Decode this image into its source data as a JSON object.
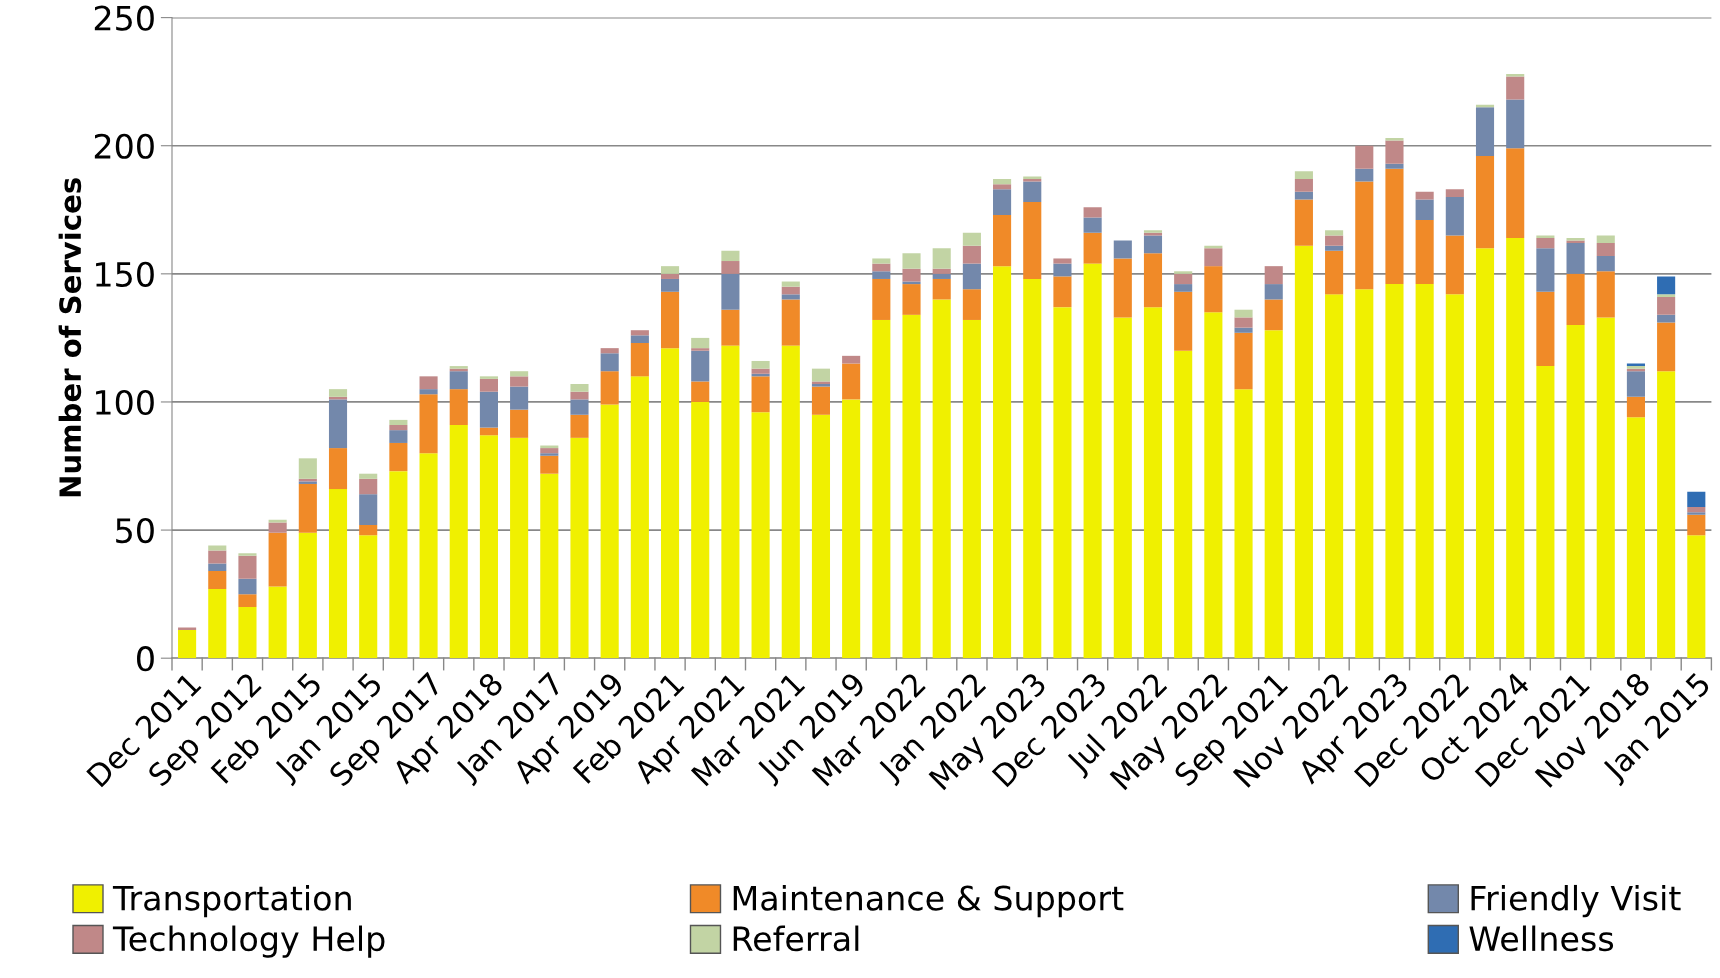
{
  "chart_data": {
    "type": "bar",
    "stacked": true,
    "ylabel": "Number of Services",
    "categories": [
      "Dec 2011",
      null,
      "Sep 2012",
      null,
      "Feb 2015",
      null,
      "Jan 2015",
      null,
      "Sep 2017",
      null,
      "Apr 2018",
      null,
      "Jan 2017",
      null,
      "Apr 2019",
      null,
      "Feb 2021",
      null,
      "Apr 2021",
      null,
      "Mar 2021",
      null,
      "Jun 2019",
      null,
      "Mar 2022",
      null,
      "Jan 2022",
      null,
      "May 2023",
      null,
      "Dec 2023",
      null,
      "Jul 2022",
      null,
      "May 2022",
      null,
      "Sep 2021",
      null,
      "Nov 2022",
      null,
      "Apr 2023",
      null,
      "Dec 2022",
      null,
      "Oct 2024",
      null,
      "Dec 2021",
      null,
      "Nov 2018",
      null,
      "Jan 2015"
    ],
    "series": [
      {
        "name": "Transportation",
        "color": "#f0f000",
        "values": [
          11,
          27,
          20,
          28,
          49,
          66,
          48,
          73,
          80,
          91,
          87,
          86,
          72,
          86,
          99,
          110,
          121,
          100,
          122,
          96,
          122,
          95,
          101,
          132,
          134,
          140,
          132,
          153,
          148,
          137,
          154,
          133,
          137,
          120,
          135,
          105,
          128,
          161,
          142,
          144,
          146,
          146,
          142,
          160,
          164,
          114,
          130,
          133,
          94,
          112,
          48
        ]
      },
      {
        "name": "Maintenance & Support",
        "color": "#f08a28",
        "values": [
          0,
          7,
          5,
          21,
          19,
          16,
          4,
          11,
          23,
          14,
          3,
          11,
          7,
          9,
          13,
          13,
          22,
          8,
          14,
          14,
          18,
          11,
          14,
          16,
          12,
          8,
          12,
          20,
          30,
          12,
          12,
          23,
          21,
          23,
          18,
          22,
          12,
          18,
          17,
          42,
          45,
          25,
          23,
          36,
          35,
          29,
          20,
          18,
          8,
          19,
          8
        ]
      },
      {
        "name": "Friendly Visit",
        "color": "#7388ab",
        "values": [
          0,
          3,
          6,
          0,
          1,
          19,
          12,
          5,
          2,
          7,
          14,
          9,
          1,
          6,
          7,
          3,
          5,
          12,
          14,
          1,
          2,
          1,
          0,
          3,
          1,
          2,
          10,
          10,
          8,
          5,
          6,
          7,
          7,
          3,
          0,
          2,
          6,
          3,
          2,
          5,
          2,
          8,
          15,
          19,
          19,
          17,
          12,
          6,
          10,
          3,
          1
        ]
      },
      {
        "name": "Technology Help",
        "color": "#c08888",
        "values": [
          1,
          5,
          9,
          4,
          1,
          1,
          6,
          2,
          5,
          1,
          5,
          4,
          2,
          3,
          2,
          2,
          2,
          1,
          5,
          2,
          3,
          1,
          3,
          3,
          5,
          2,
          7,
          2,
          1,
          2,
          4,
          0,
          1,
          4,
          7,
          4,
          7,
          5,
          4,
          9,
          9,
          3,
          3,
          0,
          9,
          4,
          1,
          5,
          1,
          7,
          2
        ]
      },
      {
        "name": "Referral",
        "color": "#c2d4a4",
        "values": [
          0,
          2,
          1,
          1,
          8,
          3,
          2,
          2,
          0,
          1,
          1,
          2,
          1,
          3,
          0,
          0,
          3,
          4,
          4,
          3,
          2,
          5,
          0,
          2,
          6,
          8,
          5,
          2,
          1,
          0,
          0,
          0,
          1,
          1,
          1,
          3,
          0,
          3,
          2,
          0,
          1,
          0,
          0,
          1,
          1,
          1,
          1,
          3,
          1,
          1,
          0
        ]
      },
      {
        "name": "Wellness",
        "color": "#2f6db3",
        "values": [
          0,
          0,
          0,
          0,
          0,
          0,
          0,
          0,
          0,
          0,
          0,
          0,
          0,
          0,
          0,
          0,
          0,
          0,
          0,
          0,
          0,
          0,
          0,
          0,
          0,
          0,
          0,
          0,
          0,
          0,
          0,
          0,
          0,
          0,
          0,
          0,
          0,
          0,
          0,
          0,
          0,
          0,
          0,
          0,
          0,
          0,
          0,
          0,
          1,
          7,
          6
        ]
      }
    ],
    "ylim": [
      0,
      250
    ],
    "yticks": [
      0,
      50,
      100,
      150,
      200,
      250
    ],
    "grid": "y",
    "legend": "bottom"
  }
}
